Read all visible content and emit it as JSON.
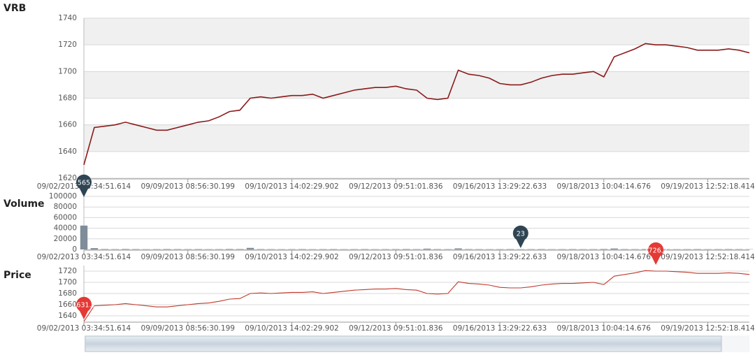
{
  "chart_data": [
    {
      "type": "line",
      "title": "VRB",
      "color": "#8b1a1a",
      "bands": true,
      "categories": [
        "09/02/2013 03:34:51.614",
        null,
        null,
        null,
        null,
        null,
        null,
        null,
        null,
        null,
        "09/09/2013 08:56:30.199",
        null,
        null,
        null,
        null,
        null,
        null,
        null,
        null,
        null,
        "09/10/2013 14:02:29.902",
        null,
        null,
        null,
        null,
        null,
        null,
        null,
        null,
        null,
        "09/12/2013 09:51:01.836",
        null,
        null,
        null,
        null,
        null,
        null,
        null,
        null,
        null,
        "09/16/2013 13:29:22.633",
        null,
        null,
        null,
        null,
        null,
        null,
        null,
        null,
        null,
        "09/18/2013 10:04:14.676",
        null,
        null,
        null,
        null,
        null,
        null,
        null,
        null,
        null,
        "09/19/2013 12:52:18.414",
        null,
        null,
        null,
        null
      ],
      "values": [
        1630,
        1658,
        1659,
        1660,
        1662,
        1660,
        1658,
        1656,
        1656,
        1658,
        1660,
        1662,
        1663,
        1666,
        1670,
        1671,
        1680,
        1681,
        1680,
        1681,
        1682,
        1682,
        1683,
        1680,
        1682,
        1684,
        1686,
        1687,
        1688,
        1688,
        1689,
        1687,
        1686,
        1680,
        1679,
        1680,
        1701,
        1698,
        1697,
        1695,
        1691,
        1690,
        1690,
        1692,
        1695,
        1697,
        1698,
        1698,
        1699,
        1700,
        1696,
        1711,
        1714,
        1717,
        1721,
        1720,
        1720,
        1719,
        1718,
        1716,
        1716,
        1716,
        1717,
        1716,
        1714
      ],
      "ylim": [
        1620,
        1740
      ],
      "yticks": [
        1620,
        1640,
        1660,
        1680,
        1700,
        1720,
        1740
      ]
    },
    {
      "type": "bar",
      "title": "Volume",
      "color": "#7f8c9a",
      "categories": [
        "09/02/2013 03:34:51.614",
        null,
        null,
        null,
        null,
        null,
        null,
        null,
        null,
        null,
        "09/09/2013 08:56:30.199",
        null,
        null,
        null,
        null,
        null,
        null,
        null,
        null,
        null,
        "09/10/2013 14:02:29.902",
        null,
        null,
        null,
        null,
        null,
        null,
        null,
        null,
        null,
        "09/12/2013 09:51:01.836",
        null,
        null,
        null,
        null,
        null,
        null,
        null,
        null,
        null,
        "09/16/2013 13:29:22.633",
        null,
        null,
        null,
        null,
        null,
        null,
        null,
        null,
        null,
        "09/18/2013 10:04:14.676",
        null,
        null,
        null,
        null,
        null,
        null,
        null,
        null,
        null,
        "09/19/2013 12:52:18.414",
        null,
        null,
        null,
        null
      ],
      "values": [
        45000,
        2500,
        800,
        600,
        900,
        700,
        500,
        600,
        800,
        700,
        600,
        700,
        500,
        600,
        900,
        800,
        3000,
        700,
        600,
        500,
        600,
        700,
        500,
        600,
        700,
        500,
        600,
        700,
        500,
        600,
        700,
        800,
        600,
        1500,
        700,
        600,
        2000,
        700,
        600,
        500,
        600,
        700,
        500,
        600,
        700,
        500,
        600,
        700,
        500,
        600,
        900,
        1800,
        700,
        600,
        800,
        700,
        600,
        500,
        600,
        700,
        500,
        600,
        700,
        600,
        500
      ],
      "ylim": [
        0,
        100000
      ],
      "yticks": [
        0,
        20000,
        40000,
        60000,
        80000,
        100000
      ],
      "flags": [
        {
          "label": "565"
        },
        {
          "label": "23"
        }
      ]
    },
    {
      "type": "line",
      "title": "Price",
      "color": "#c0392b",
      "categories": [
        "09/02/2013 03:34:51.614",
        null,
        null,
        null,
        null,
        null,
        null,
        null,
        null,
        null,
        "09/09/2013 08:56:30.199",
        null,
        null,
        null,
        null,
        null,
        null,
        null,
        null,
        null,
        "09/10/2013 14:02:29.902",
        null,
        null,
        null,
        null,
        null,
        null,
        null,
        null,
        null,
        "09/12/2013 09:51:01.836",
        null,
        null,
        null,
        null,
        null,
        null,
        null,
        null,
        null,
        "09/16/2013 13:29:22.633",
        null,
        null,
        null,
        null,
        null,
        null,
        null,
        null,
        null,
        "09/18/2013 10:04:14.676",
        null,
        null,
        null,
        null,
        null,
        null,
        null,
        null,
        null,
        "09/19/2013 12:52:18.414",
        null,
        null,
        null,
        null
      ],
      "values": [
        1630,
        1658,
        1659,
        1660,
        1662,
        1660,
        1658,
        1656,
        1656,
        1658,
        1660,
        1662,
        1663,
        1666,
        1670,
        1671,
        1680,
        1681,
        1680,
        1681,
        1682,
        1682,
        1683,
        1680,
        1682,
        1684,
        1686,
        1687,
        1688,
        1688,
        1689,
        1687,
        1686,
        1680,
        1679,
        1680,
        1701,
        1698,
        1697,
        1695,
        1691,
        1690,
        1690,
        1692,
        1695,
        1697,
        1698,
        1698,
        1699,
        1700,
        1696,
        1711,
        1714,
        1717,
        1721,
        1720,
        1720,
        1719,
        1718,
        1716,
        1716,
        1716,
        1717,
        1716,
        1714
      ],
      "ylim": [
        1630,
        1730
      ],
      "yticks": [
        1640,
        1660,
        1680,
        1700,
        1720
      ],
      "flags": [
        {
          "label": "1631.2"
        },
        {
          "label": "1726.2"
        }
      ]
    }
  ]
}
